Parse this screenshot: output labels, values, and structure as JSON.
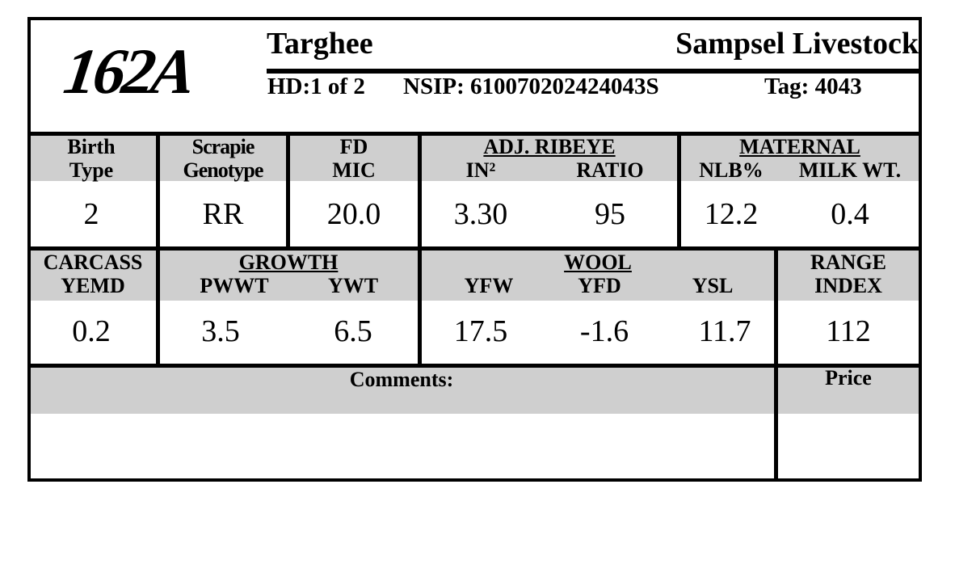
{
  "header": {
    "id": "162A",
    "breed": "Targhee",
    "breeder": "Sampsel Livestock",
    "hd": "HD:1 of 2",
    "nsip": "NSIP: 610070202424043S",
    "tag": "Tag: 4043"
  },
  "row1": {
    "birth_type": {
      "label": [
        "Birth",
        "Type"
      ],
      "value": "2"
    },
    "scrapie": {
      "label": [
        "Scrapie",
        "Genotype"
      ],
      "value": "RR"
    },
    "fd": {
      "label": [
        "FD",
        "MIC"
      ],
      "value": "20.0"
    },
    "ribeye": {
      "group": "ADJ. RIBEYE",
      "columns": [
        {
          "label": "IN²",
          "value": "3.30"
        },
        {
          "label": "RATIO",
          "value": "95"
        }
      ]
    },
    "maternal": {
      "group": "MATERNAL",
      "columns": [
        {
          "label": "NLB%",
          "value": "12.2"
        },
        {
          "label": "MILK WT.",
          "value": "0.4"
        }
      ]
    }
  },
  "row2": {
    "carcass": {
      "label": [
        "CARCASS",
        "YEMD"
      ],
      "value": "0.2"
    },
    "growth": {
      "group": "GROWTH",
      "columns": [
        {
          "label": "PWWT",
          "value": "3.5"
        },
        {
          "label": "YWT",
          "value": "6.5"
        }
      ]
    },
    "wool": {
      "group": "WOOL",
      "columns": [
        {
          "label": "YFW",
          "value": "17.5"
        },
        {
          "label": "YFD",
          "value": "-1.6"
        },
        {
          "label": "YSL",
          "value": "11.7"
        }
      ]
    },
    "range": {
      "label": [
        "RANGE",
        "INDEX"
      ],
      "value": "112"
    }
  },
  "row3": {
    "comments": "Comments:",
    "price": "Price"
  }
}
